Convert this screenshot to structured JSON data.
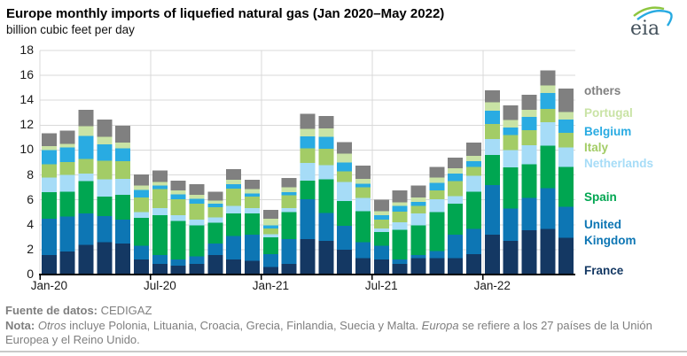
{
  "header": {
    "title": "Europe monthly imports of liquefied natural gas (Jan 2020–May 2022)",
    "subtitle": "billion cubic feet per day",
    "logo_text": "eia"
  },
  "chart_data": {
    "type": "bar",
    "stacked": true,
    "title": "Europe monthly imports of liquefied natural gas (Jan 2020–May 2022)",
    "ylabel": "billion cubic feet per day",
    "grid": true,
    "y_axis": {
      "min": 0,
      "max": 18,
      "step": 2
    },
    "colors": {
      "grid": "#d9d9d9",
      "axis": "#000000"
    },
    "categories": [
      "Jan-20",
      "Feb-20",
      "Mar-20",
      "Apr-20",
      "May-20",
      "Jun-20",
      "Jul-20",
      "Aug-20",
      "Sep-20",
      "Oct-20",
      "Nov-20",
      "Dec-20",
      "Jan-21",
      "Feb-21",
      "Mar-21",
      "Apr-21",
      "May-21",
      "Jun-21",
      "Jul-21",
      "Aug-21",
      "Sep-21",
      "Oct-21",
      "Nov-21",
      "Dec-21",
      "Jan-22",
      "Feb-22",
      "Mar-22",
      "Apr-22",
      "May-22"
    ],
    "x_ticks": [
      {
        "index": 0,
        "label": "Jan-20"
      },
      {
        "index": 6,
        "label": "Jul-20"
      },
      {
        "index": 12,
        "label": "Jan-21"
      },
      {
        "index": 18,
        "label": "Jul-21"
      },
      {
        "index": 24,
        "label": "Jan-22"
      }
    ],
    "series": [
      {
        "name": "France",
        "color": "#143863",
        "values": [
          1.55,
          1.85,
          2.4,
          2.6,
          2.5,
          1.2,
          0.85,
          0.7,
          0.85,
          1.55,
          1.2,
          1.1,
          0.6,
          0.85,
          2.85,
          2.7,
          2.0,
          1.3,
          1.2,
          0.85,
          1.3,
          1.3,
          1.3,
          1.65,
          3.2,
          2.7,
          3.55,
          3.65,
          2.95
        ]
      },
      {
        "name": "United Kingdom",
        "color": "#0d76b4",
        "values": [
          2.95,
          2.8,
          2.5,
          2.1,
          1.9,
          1.1,
          0.7,
          0.5,
          0.6,
          0.95,
          1.9,
          2.1,
          1.05,
          2.0,
          3.2,
          2.25,
          1.9,
          1.3,
          1.1,
          0.35,
          0.25,
          0.6,
          1.9,
          2.0,
          4.0,
          2.6,
          2.6,
          3.3,
          2.5
        ]
      },
      {
        "name": "Spain",
        "color": "#00a651",
        "values": [
          2.1,
          2.0,
          2.6,
          1.55,
          2.0,
          2.25,
          3.2,
          3.1,
          2.5,
          1.65,
          1.8,
          1.7,
          1.35,
          2.15,
          1.5,
          2.7,
          2.0,
          2.5,
          1.1,
          2.4,
          2.4,
          3.1,
          2.5,
          3.0,
          2.4,
          3.3,
          2.7,
          3.4,
          3.2
        ]
      },
      {
        "name": "Netherlands",
        "color": "#a6dcf7",
        "values": [
          1.2,
          1.35,
          0.6,
          1.4,
          1.3,
          0.45,
          0.6,
          0.45,
          0.45,
          0.45,
          0.6,
          0.45,
          0.25,
          0.35,
          1.4,
          1.15,
          1.55,
          1.05,
          0.3,
          0.6,
          0.95,
          1.05,
          0.6,
          1.3,
          1.3,
          1.4,
          1.55,
          1.9,
          1.55
        ]
      },
      {
        "name": "Italy",
        "color": "#a3cc66",
        "values": [
          1.05,
          1.05,
          1.2,
          1.5,
          1.4,
          1.2,
          1.5,
          1.3,
          1.3,
          0.8,
          1.4,
          0.9,
          0.45,
          1.0,
          1.2,
          1.3,
          0.85,
          0.85,
          0.7,
          0.85,
          0.6,
          0.7,
          1.2,
          0.7,
          1.2,
          1.2,
          1.2,
          1.05,
          1.2
        ]
      },
      {
        "name": "Belgium",
        "color": "#29abe2",
        "values": [
          1.15,
          1.15,
          1.85,
          1.3,
          1.05,
          0.6,
          0.3,
          0.4,
          0.4,
          0.3,
          0.35,
          0.25,
          0.25,
          0.25,
          0.95,
          0.95,
          0.7,
          0.3,
          0.35,
          0.45,
          0.35,
          0.6,
          0.6,
          0.45,
          1.05,
          0.6,
          1.05,
          1.3,
          1.05
        ]
      },
      {
        "name": "Portugal",
        "color": "#c9e3a5",
        "values": [
          0.3,
          0.3,
          0.75,
          0.6,
          0.45,
          0.35,
          0.3,
          0.3,
          0.3,
          0.25,
          0.35,
          0.35,
          0.55,
          0.4,
          0.6,
          0.7,
          0.7,
          0.4,
          0.35,
          0.3,
          0.35,
          0.45,
          0.45,
          0.45,
          0.7,
          0.6,
          0.6,
          0.6,
          0.6
        ]
      },
      {
        "name": "others",
        "color": "#808080",
        "values": [
          1.05,
          1.05,
          1.35,
          1.4,
          1.35,
          0.9,
          0.9,
          0.8,
          0.85,
          0.7,
          0.85,
          0.75,
          0.7,
          0.75,
          1.2,
          1.0,
          0.95,
          1.05,
          0.9,
          0.95,
          0.95,
          0.85,
          0.85,
          1.05,
          0.95,
          1.2,
          1.2,
          1.2,
          1.9
        ]
      }
    ],
    "legend_position": "right"
  },
  "footer": {
    "source_label": "Fuente de datos:",
    "source_value": " CEDIGAZ",
    "note_label": "Nota:",
    "note_italic1": " Otros",
    "note_part2": " incluye Polonia, Lituania, Croacia, Grecia, Finlandia, Suecia y Malta. ",
    "note_italic2": "Europa",
    "note_part3": " se refiere a los 27 países de la Unión Europea y el Reino Unido."
  }
}
